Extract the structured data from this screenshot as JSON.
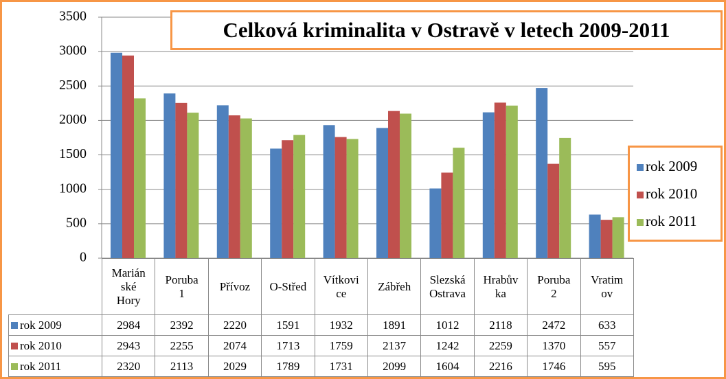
{
  "chart_data": {
    "type": "bar",
    "title": "Celková kriminalita v Ostravě v letech 2009-2011",
    "categories": [
      "Marián\nské\nHory",
      "Poruba\n1",
      "Přívoz",
      "O-Střed",
      "Vítkovi\nce",
      "Zábřeh",
      "Slezská\nOstrava",
      "Hrabův\nka",
      "Poruba\n2",
      "Vratim\nov"
    ],
    "series": [
      {
        "name": "rok 2009",
        "color": "#4f81bd",
        "values": [
          2984,
          2392,
          2220,
          1591,
          1932,
          1891,
          1012,
          2118,
          2472,
          633
        ]
      },
      {
        "name": "rok 2010",
        "color": "#c0504d",
        "values": [
          2943,
          2255,
          2074,
          1713,
          1759,
          2137,
          1242,
          2259,
          1370,
          557
        ]
      },
      {
        "name": "rok 2011",
        "color": "#9bbb59",
        "values": [
          2320,
          2113,
          2029,
          1789,
          1731,
          2099,
          1604,
          2216,
          1746,
          595
        ]
      }
    ],
    "ylim": [
      0,
      3500
    ],
    "yticks": [
      0,
      500,
      1000,
      1500,
      2000,
      2500,
      3000,
      3500
    ],
    "grid": true,
    "legend": "right"
  }
}
